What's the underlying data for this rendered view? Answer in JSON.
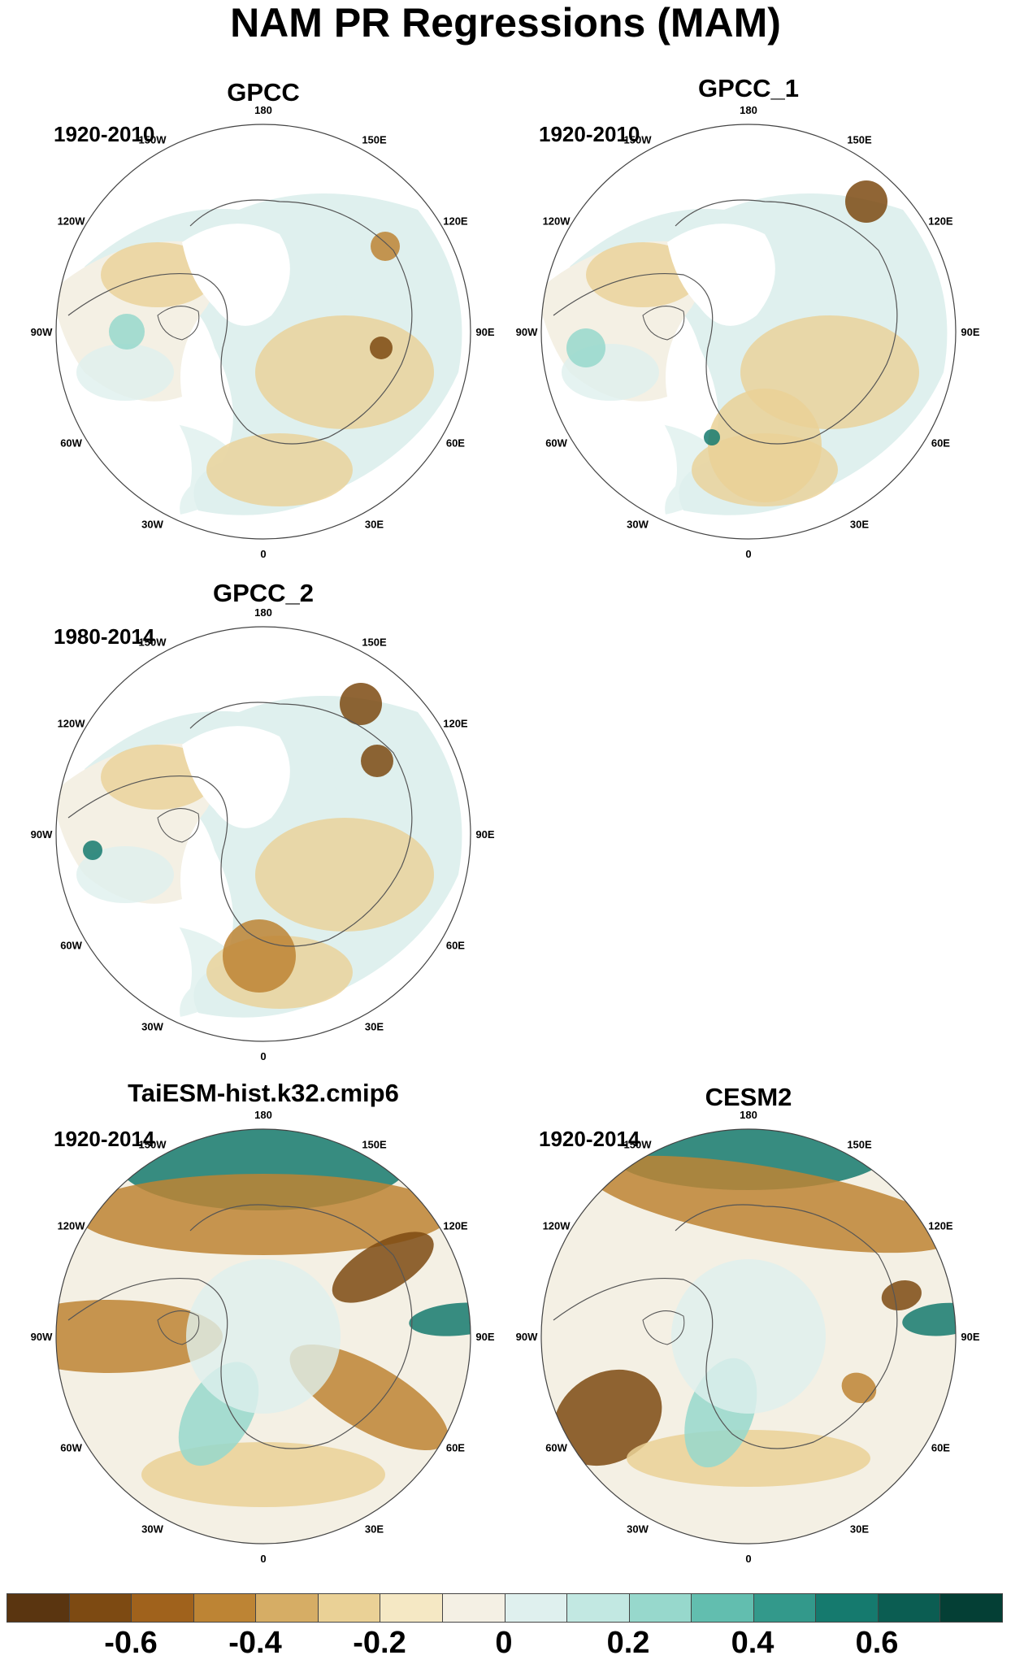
{
  "title": "NAM PR Regressions (MAM)",
  "longitude_labels": [
    "180",
    "150E",
    "120E",
    "90E",
    "60E",
    "30E",
    "0",
    "30W",
    "60W",
    "90W",
    "120W",
    "150W"
  ],
  "panels": [
    {
      "id": "gpcc",
      "title": "GPCC",
      "period": "1920-2010",
      "field": "weak"
    },
    {
      "id": "gpcc1",
      "title": "GPCC_1",
      "period": "1920-2010",
      "field": "weak"
    },
    {
      "id": "gpcc2",
      "title": "GPCC_2",
      "period": "1980-2014",
      "field": "weak"
    },
    {
      "id": "taiesm",
      "title": "TaiESM-hist.k32.cmip6",
      "period": "1920-2014",
      "field": "strong"
    },
    {
      "id": "cesm2",
      "title": "CESM2",
      "period": "1920-2014",
      "field": "strong"
    }
  ],
  "colorbar": {
    "colors": [
      "#5a3510",
      "#7d4a12",
      "#a0621c",
      "#bd8434",
      "#d6ad65",
      "#ead196",
      "#f5e8c4",
      "#f4f0e4",
      "#dff0ee",
      "#c2e8e2",
      "#97d8cc",
      "#62beaf",
      "#33998b",
      "#157a6e",
      "#0b5d52",
      "#043f35"
    ],
    "labels": [
      "-0.6",
      "-0.4",
      "-0.2",
      "0",
      "0.2",
      "0.4",
      "0.6"
    ]
  }
}
